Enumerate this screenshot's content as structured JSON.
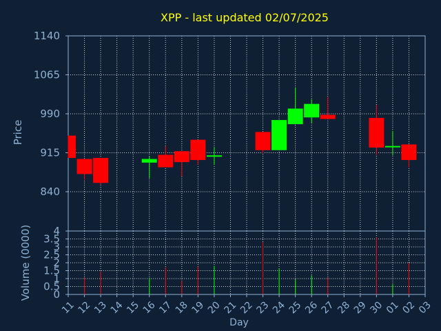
{
  "colors": {
    "background": "#0f2034",
    "title": "#ffff00",
    "text": "#8fb1d4",
    "frame": "#8fb1d4",
    "up": "#00ff00",
    "down": "#ff0000"
  },
  "chart_data": [
    {
      "type": "candlestick",
      "title": "XPP - last updated 02/07/2025",
      "ylabel": "Price",
      "ylim": [
        840,
        1140
      ],
      "yticks": [
        840,
        915,
        990,
        1065,
        1140
      ],
      "grid": true,
      "categories": [
        "11",
        "12",
        "13",
        "14",
        "15",
        "16",
        "17",
        "18",
        "19",
        "20",
        "21",
        "22",
        "23",
        "24",
        "25",
        "26",
        "27",
        "28",
        "29",
        "30",
        "01",
        "02",
        "03"
      ],
      "candles": [
        {
          "day": "11",
          "open": 948,
          "close": 905,
          "high": 948,
          "low": 905
        },
        {
          "day": "12",
          "open": 903,
          "close": 874,
          "high": 903,
          "low": 863
        },
        {
          "day": "13",
          "open": 905,
          "close": 857,
          "high": 905,
          "low": 853
        },
        {
          "day": "16",
          "open": 896,
          "close": 903,
          "high": 908,
          "low": 866
        },
        {
          "day": "17",
          "open": 911,
          "close": 887,
          "high": 928,
          "low": 887
        },
        {
          "day": "18",
          "open": 918,
          "close": 897,
          "high": 918,
          "low": 869
        },
        {
          "day": "19",
          "open": 940,
          "close": 901,
          "high": 940,
          "low": 892
        },
        {
          "day": "20",
          "open": 909,
          "close": 910,
          "high": 926,
          "low": 892
        },
        {
          "day": "23",
          "open": 955,
          "close": 920,
          "high": 955,
          "low": 914
        },
        {
          "day": "24",
          "open": 920,
          "close": 978,
          "high": 978,
          "low": 920
        },
        {
          "day": "25",
          "open": 970,
          "close": 1000,
          "high": 1041,
          "low": 970
        },
        {
          "day": "26",
          "open": 983,
          "close": 1009,
          "high": 1018,
          "low": 972
        },
        {
          "day": "27",
          "open": 988,
          "close": 980,
          "high": 1022,
          "low": 980
        },
        {
          "day": "30",
          "open": 982,
          "close": 925,
          "high": 1007,
          "low": 911
        },
        {
          "day": "01",
          "open": 926,
          "close": 928,
          "high": 957,
          "low": 910
        },
        {
          "day": "02",
          "open": 931,
          "close": 901,
          "high": 931,
          "low": 887
        }
      ]
    },
    {
      "type": "bar",
      "ylabel": "Volume (0000)",
      "xlabel": "Day",
      "ylim": [
        0,
        4
      ],
      "yticks": [
        0,
        0.5,
        1,
        1.5,
        2,
        2.5,
        3,
        3.5,
        4
      ],
      "ytick_labels": [
        "0",
        "0.5",
        "1",
        "1.5",
        "2",
        "2.5",
        "3",
        "3.5",
        "4"
      ],
      "grid": true,
      "categories": [
        "11",
        "12",
        "13",
        "14",
        "15",
        "16",
        "17",
        "18",
        "19",
        "20",
        "21",
        "22",
        "23",
        "24",
        "25",
        "26",
        "27",
        "28",
        "29",
        "30",
        "01",
        "02",
        "03"
      ],
      "bars": [
        {
          "day": "12",
          "value": 1.05,
          "dir": "down"
        },
        {
          "day": "13",
          "value": 1.45,
          "dir": "down"
        },
        {
          "day": "16",
          "value": 1.05,
          "dir": "up"
        },
        {
          "day": "17",
          "value": 1.7,
          "dir": "down"
        },
        {
          "day": "18",
          "value": 0.85,
          "dir": "down"
        },
        {
          "day": "19",
          "value": 1.75,
          "dir": "down"
        },
        {
          "day": "20",
          "value": 1.8,
          "dir": "up"
        },
        {
          "day": "23",
          "value": 3.3,
          "dir": "down"
        },
        {
          "day": "24",
          "value": 1.65,
          "dir": "up"
        },
        {
          "day": "25",
          "value": 0.95,
          "dir": "up"
        },
        {
          "day": "26",
          "value": 1.2,
          "dir": "up"
        },
        {
          "day": "27",
          "value": 1.05,
          "dir": "down"
        },
        {
          "day": "30",
          "value": 3.6,
          "dir": "down"
        },
        {
          "day": "01",
          "value": 0.65,
          "dir": "up"
        },
        {
          "day": "02",
          "value": 2.0,
          "dir": "down"
        }
      ]
    }
  ]
}
